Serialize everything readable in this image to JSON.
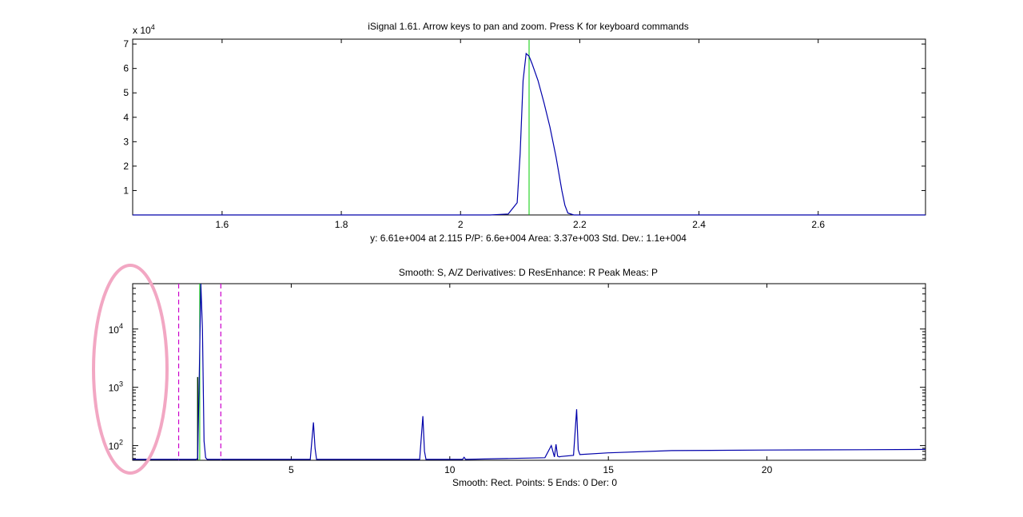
{
  "chart_data": [
    {
      "type": "line",
      "title": "iSignal 1.61. Arrow keys to pan and zoom. Press K for keyboard commands",
      "xlim": [
        1.45,
        2.78
      ],
      "ylim": [
        0,
        72000
      ],
      "y_exponent_label": "x 10",
      "y_exponent": "4",
      "x_ticks": [
        {
          "v": 1.6,
          "label": "1.6"
        },
        {
          "v": 1.8,
          "label": "1.8"
        },
        {
          "v": 2.0,
          "label": "2"
        },
        {
          "v": 2.2,
          "label": "2.2"
        },
        {
          "v": 2.4,
          "label": "2.4"
        },
        {
          "v": 2.6,
          "label": "2.6"
        }
      ],
      "y_ticks": [
        {
          "v": 10000,
          "label": "1"
        },
        {
          "v": 20000,
          "label": "2"
        },
        {
          "v": 30000,
          "label": "3"
        },
        {
          "v": 40000,
          "label": "4"
        },
        {
          "v": 50000,
          "label": "5"
        },
        {
          "v": 60000,
          "label": "6"
        },
        {
          "v": 70000,
          "label": "7"
        }
      ],
      "series_color": "#0000aa",
      "series": [
        {
          "x": [
            1.45,
            2.05,
            2.08,
            2.095,
            2.1,
            2.105,
            2.11,
            2.115,
            2.12,
            2.13,
            2.14,
            2.15,
            2.16,
            2.17,
            2.175,
            2.18,
            2.19,
            2.78
          ],
          "y": [
            0,
            0,
            400,
            5000,
            25000,
            55000,
            66100,
            65000,
            62000,
            55000,
            46000,
            36000,
            24000,
            10000,
            4000,
            800,
            0,
            0
          ]
        }
      ],
      "cursor_x": 2.115,
      "cursor_color": "#00cc00",
      "footer": "y: 6.61e+004 at 2.115   P/P: 6.6e+004   Area: 3.37e+003  Std. Dev.: 1.1e+004"
    },
    {
      "type": "line",
      "title": "Smooth: S, A/Z    Derivatives: D    ResEnhance: R    Peak Meas: P",
      "xlim": [
        0,
        25
      ],
      "y_log": true,
      "ylim": [
        56,
        60000
      ],
      "x_ticks": [
        {
          "v": 5,
          "label": "5"
        },
        {
          "v": 10,
          "label": "10"
        },
        {
          "v": 15,
          "label": "15"
        },
        {
          "v": 20,
          "label": "20"
        }
      ],
      "y_ticks": [
        {
          "v": 100,
          "base": "10",
          "exp": "2"
        },
        {
          "v": 1000,
          "base": "10",
          "exp": "3"
        },
        {
          "v": 10000,
          "base": "10",
          "exp": "4"
        }
      ],
      "series_color": "#0000aa",
      "series": [
        {
          "x": [
            0,
            2.0,
            2.05,
            2.1,
            2.15,
            2.2,
            2.25,
            2.3,
            2.35,
            5.6,
            5.7,
            5.75,
            5.8,
            9.05,
            9.15,
            9.2,
            9.25,
            10.4,
            10.45,
            10.5,
            13.0,
            13.2,
            13.3,
            13.35,
            13.4,
            13.45,
            13.5,
            13.9,
            14.0,
            14.05,
            14.1,
            15,
            17,
            20,
            23,
            25
          ],
          "y": [
            58,
            58,
            60,
            1500,
            60000,
            10000,
            120,
            62,
            58,
            58,
            250,
            90,
            58,
            58,
            320,
            80,
            58,
            58,
            63,
            58,
            62,
            100,
            64,
            105,
            66,
            64,
            65,
            68,
            420,
            85,
            70,
            75,
            82,
            84,
            85,
            86
          ]
        }
      ],
      "cursor_x": 2.115,
      "cursor_color": "#00cc00",
      "dark_marker_x": 2.05,
      "region_lines_x": [
        1.45,
        2.78
      ],
      "region_color": "#cc00cc",
      "footer": "Smooth: Rect.     Points: 5     Ends: 0     Der: 0"
    }
  ],
  "annotation": {
    "color": "#f2a7c3"
  }
}
